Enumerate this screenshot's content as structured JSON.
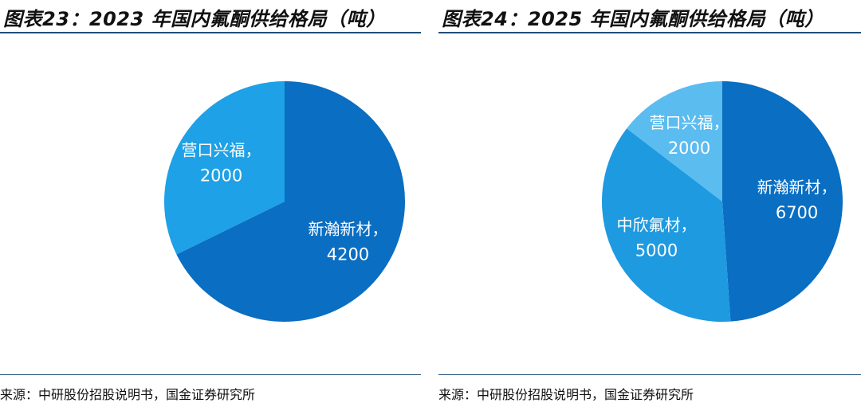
{
  "charts": [
    {
      "title": "图表23：2023 年国内氟酮供给格局（吨）",
      "source": "来源：中研股份招股说明书，国金证券研究所"
    },
    {
      "title": "图表24：2025 年国内氟酮供给格局（吨）",
      "source": "来源：中研股份招股说明书，国金证券研究所"
    }
  ],
  "chart_data": [
    {
      "type": "pie",
      "title": "图表23：2023 年国内氟酮供给格局（吨）",
      "unit": "吨",
      "slices": [
        {
          "label": "新瀚新材",
          "value": 4200,
          "value_text": "4200",
          "color": "#0a6ec2"
        },
        {
          "label": "营口兴福",
          "value": 2000,
          "value_text": "2000",
          "color": "#1ea1e6"
        }
      ]
    },
    {
      "type": "pie",
      "title": "图表24：2025 年国内氟酮供给格局（吨）",
      "unit": "吨",
      "slices": [
        {
          "label": "新瀚新材",
          "value": 6700,
          "value_text": "6700",
          "color": "#0a6ec2"
        },
        {
          "label": "中欣氟材",
          "value": 5000,
          "value_text": "5000",
          "color": "#1e9ae0"
        },
        {
          "label": "营口兴福",
          "value": 2000,
          "value_text": "2000",
          "color": "#5bbcf0"
        }
      ]
    }
  ]
}
